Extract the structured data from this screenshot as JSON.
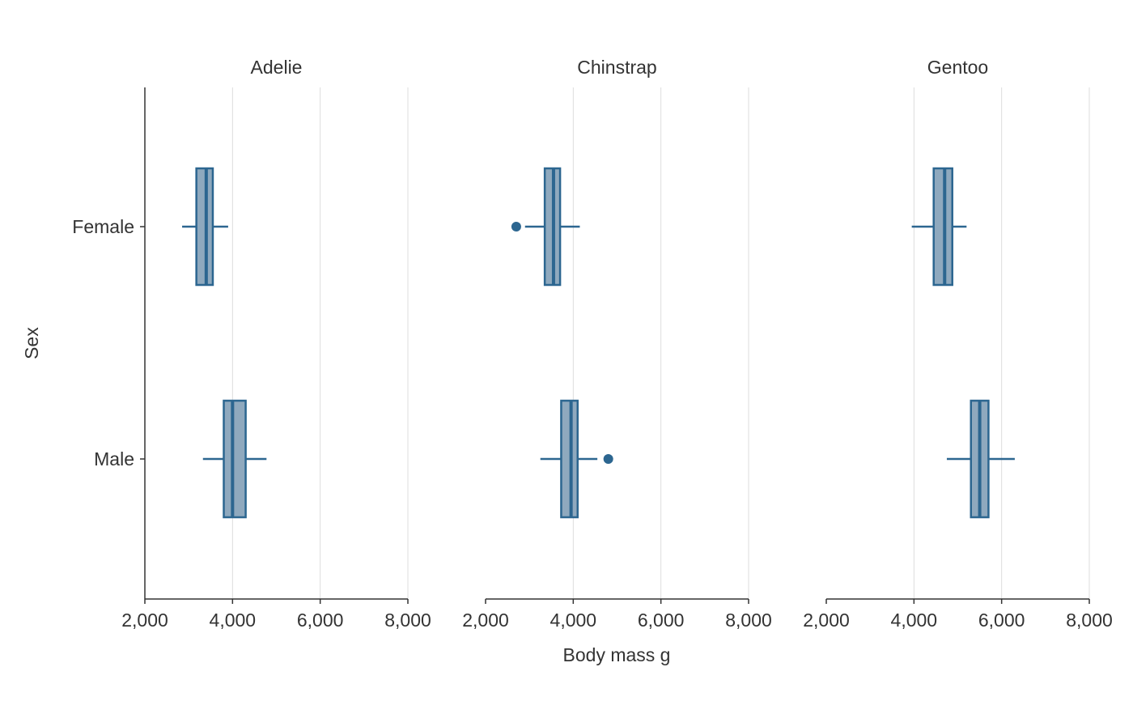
{
  "chart_data": {
    "type": "boxplot",
    "orientation": "horizontal",
    "xlabel": "Body mass g",
    "ylabel": "Sex",
    "xlim": [
      2000,
      8000
    ],
    "xticks": [
      2000,
      4000,
      6000,
      8000
    ],
    "xtick_labels": [
      "2,000",
      "4,000",
      "6,000",
      "8,000"
    ],
    "categories": [
      "Female",
      "Male"
    ],
    "grid": "vertical",
    "colors": {
      "fill": "#8FA9BE",
      "stroke": "#2C6690",
      "grid": "#DDDDDD",
      "axis": "#333333"
    },
    "panels": [
      {
        "title": "Adelie",
        "boxes": [
          {
            "category": "Female",
            "whisker_low": 2850,
            "q1": 3175,
            "median": 3400,
            "q3": 3550,
            "whisker_high": 3900,
            "outliers": []
          },
          {
            "category": "Male",
            "whisker_low": 3325,
            "q1": 3800,
            "median": 4000,
            "q3": 4300,
            "whisker_high": 4775,
            "outliers": []
          }
        ]
      },
      {
        "title": "Chinstrap",
        "boxes": [
          {
            "category": "Female",
            "whisker_low": 2900,
            "q1": 3350,
            "median": 3550,
            "q3": 3700,
            "whisker_high": 4150,
            "outliers": [
              2700
            ]
          },
          {
            "category": "Male",
            "whisker_low": 3250,
            "q1": 3725,
            "median": 3950,
            "q3": 4100,
            "whisker_high": 4550,
            "outliers": [
              4800
            ]
          }
        ]
      },
      {
        "title": "Gentoo",
        "boxes": [
          {
            "category": "Female",
            "whisker_low": 3950,
            "q1": 4450,
            "median": 4700,
            "q3": 4875,
            "whisker_high": 5200,
            "outliers": []
          },
          {
            "category": "Male",
            "whisker_low": 4750,
            "q1": 5300,
            "median": 5500,
            "q3": 5700,
            "whisker_high": 6300,
            "outliers": []
          }
        ]
      }
    ]
  }
}
